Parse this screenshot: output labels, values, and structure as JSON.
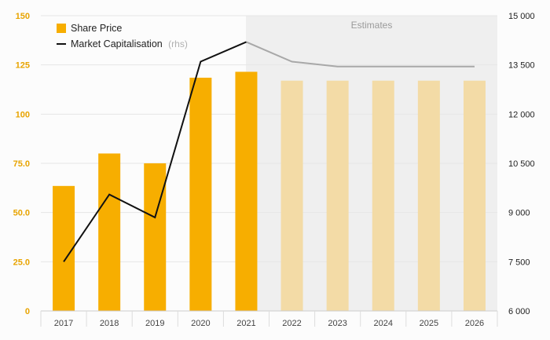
{
  "chart_data": {
    "type": "bar",
    "categories": [
      "2017",
      "2018",
      "2019",
      "2020",
      "2021",
      "2022",
      "2023",
      "2024",
      "2025",
      "2026"
    ],
    "series": [
      {
        "name": "Share Price",
        "type": "bar",
        "axis": "left",
        "values": [
          63.5,
          80,
          75,
          118.5,
          121.5,
          117,
          117,
          117,
          117,
          117
        ],
        "color": "#f7ae00",
        "estimate_color": "#f3dba6"
      },
      {
        "name": "Market Capitalisation",
        "name_suffix": "(rhs)",
        "type": "line",
        "axis": "right",
        "values": [
          7500,
          9550,
          8850,
          13600,
          14200,
          13600,
          13450,
          13450,
          13450,
          13450
        ],
        "color": "#111111",
        "estimate_color": "#a8a8a8"
      }
    ],
    "estimates_label": "Estimates",
    "estimate_start": "2022",
    "yleft": {
      "ticks": [
        "0",
        "25.0",
        "50.0",
        "75.0",
        "100",
        "125",
        "150"
      ],
      "values": [
        0,
        25,
        50,
        75,
        100,
        125,
        150
      ],
      "lim": [
        0,
        150
      ],
      "color": "#e8a400"
    },
    "yright": {
      "ticks": [
        "6 000",
        "7 500",
        "9 000",
        "10 500",
        "12 000",
        "13 500",
        "15 000"
      ],
      "values": [
        6000,
        7500,
        9000,
        10500,
        12000,
        13500,
        15000
      ],
      "lim": [
        6000,
        15000
      ]
    },
    "estimate_bg": "#efefef",
    "grid": true,
    "legend": "top-left"
  }
}
